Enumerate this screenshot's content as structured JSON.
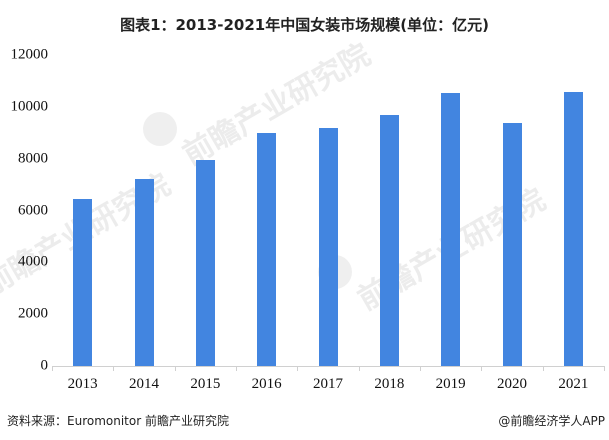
{
  "title": "图表1：2013-2021年中国女装市场规模(单位：亿元)",
  "source": "资料来源：Euromonitor 前瞻产业研究院",
  "credit": "@前瞻经济学人APP",
  "watermark": "前瞻产业研究院",
  "colors": {
    "bar": "#4285e0",
    "axis": "#d0d0d0",
    "text": "#222222"
  },
  "chart_data": {
    "type": "bar",
    "title": "图表1：2013-2021年中国女装市场规模(单位：亿元)",
    "xlabel": "",
    "ylabel": "",
    "unit": "亿元",
    "categories": [
      "2013",
      "2014",
      "2015",
      "2016",
      "2017",
      "2018",
      "2019",
      "2020",
      "2021"
    ],
    "values": [
      6430,
      7210,
      7950,
      9000,
      9190,
      9690,
      10540,
      9380,
      10580
    ],
    "ylim": [
      0,
      12000
    ],
    "yticks": [
      "0",
      "2000",
      "4000",
      "6000",
      "8000",
      "10000",
      "12000"
    ],
    "grid": false,
    "legend": null
  }
}
